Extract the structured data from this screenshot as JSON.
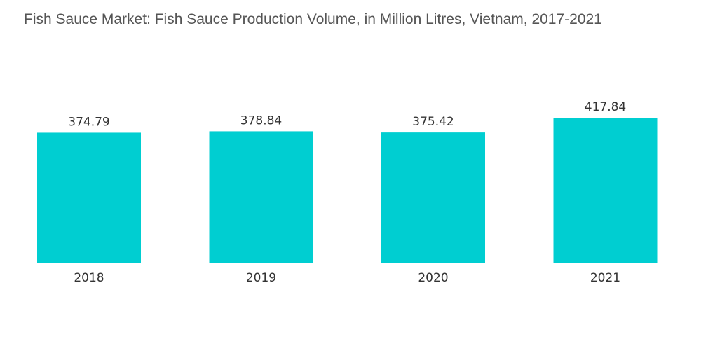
{
  "chart_data": {
    "type": "bar",
    "title": "Fish Sauce Market: Fish Sauce Production Volume, in Million Litres, Vietnam, 2017-2021",
    "categories": [
      "2018",
      "2019",
      "2020",
      "2021"
    ],
    "values": [
      374.79,
      378.84,
      375.42,
      417.84
    ],
    "value_labels": [
      "374.79",
      "378.84",
      "375.42",
      "417.84"
    ],
    "xlabel": "",
    "ylabel": "",
    "ylim": [
      0,
      450
    ],
    "grid": false,
    "bar_color": "#00CED1",
    "legend": "none"
  }
}
